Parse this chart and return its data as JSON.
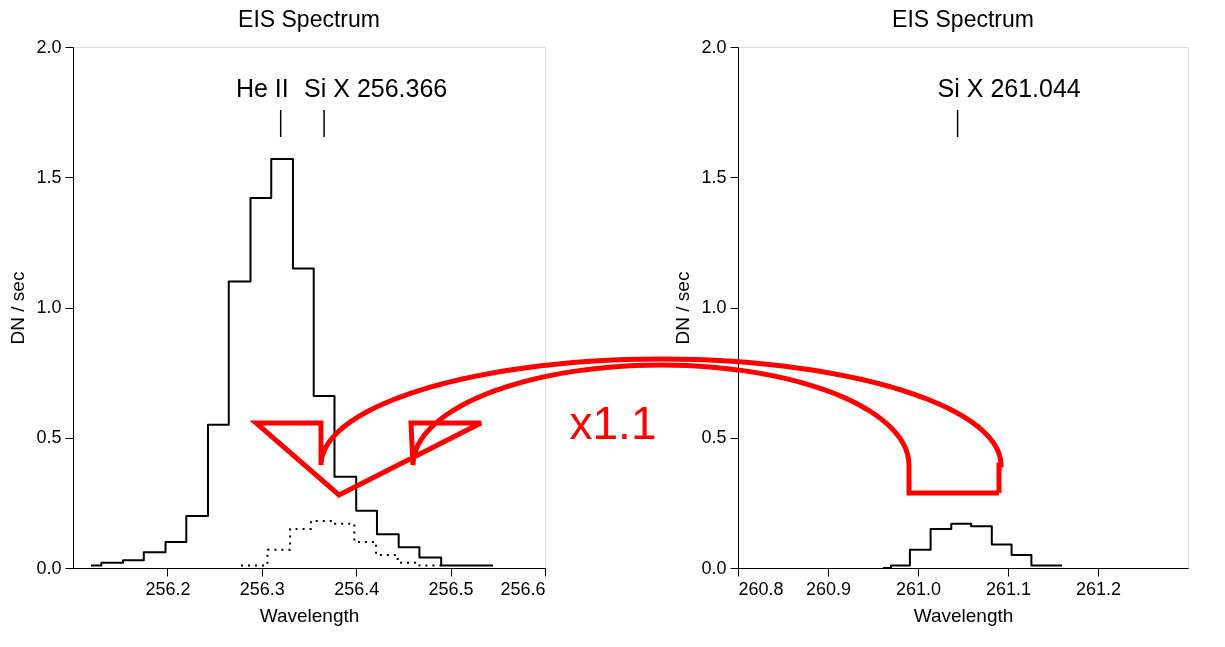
{
  "chart_data": [
    {
      "type": "step",
      "title": "EIS Spectrum",
      "xlabel": "Wavelength",
      "ylabel": "DN / sec",
      "xlim": [
        256.1,
        256.6
      ],
      "ylim": [
        0,
        2.0
      ],
      "xticks": [
        256.2,
        256.3,
        256.4,
        256.5,
        256.6
      ],
      "yticks": [
        {
          "value": 0,
          "label": "0.0"
        },
        {
          "value": 0.5,
          "label": "0.5"
        },
        {
          "value": 1.0,
          "label": "1.0"
        },
        {
          "value": 1.5,
          "label": "1.5"
        },
        {
          "value": 2.0,
          "label": "2.0"
        }
      ],
      "series": [
        {
          "color": "#000000",
          "line_style": "solid",
          "x": [
            256.119,
            256.13,
            256.153,
            256.175,
            256.198,
            256.22,
            256.243,
            256.265,
            256.288,
            256.31,
            256.333,
            256.355,
            256.377,
            256.4,
            256.422,
            256.445,
            256.467,
            256.49,
            256.512,
            256.545
          ],
          "values": [
            0.01,
            0.02,
            0.03,
            0.06,
            0.1,
            0.2,
            0.55,
            1.1,
            1.42,
            1.57,
            1.15,
            0.66,
            0.35,
            0.22,
            0.13,
            0.08,
            0.04,
            0.01,
            0.01,
            0.01
          ]
        },
        {
          "color": "#000000",
          "line_style": "dotted",
          "x": [
            256.278,
            256.306,
            256.33,
            256.352,
            256.375,
            256.398,
            256.421,
            256.444,
            256.467,
            256.49
          ],
          "values": [
            0.01,
            0.07,
            0.15,
            0.18,
            0.17,
            0.1,
            0.05,
            0.02,
            0.01,
            0.01
          ]
        }
      ],
      "ref_lines": [
        {
          "axis": "x",
          "value": 256.32,
          "label": "He II"
        },
        {
          "axis": "x",
          "value": 256.366,
          "label": "Si X 256.366"
        }
      ]
    },
    {
      "type": "step",
      "title": "EIS Spectrum",
      "xlabel": "Wavelength",
      "ylabel": "DN / sec",
      "xlim": [
        260.8,
        261.3
      ],
      "ylim": [
        0,
        2.0
      ],
      "xticks": [
        260.8,
        260.9,
        {
          "value": 261.0,
          "label": "261.0"
        },
        261.1,
        261.2
      ],
      "yticks": [
        {
          "value": 0,
          "label": "0.0"
        },
        {
          "value": 0.5,
          "label": "0.5"
        },
        {
          "value": 1.0,
          "label": "1.0"
        },
        {
          "value": 1.5,
          "label": "1.5"
        },
        {
          "value": 2.0,
          "label": "2.0"
        }
      ],
      "series": [
        {
          "color": "#000000",
          "line_style": "solid",
          "x": [
            260.961,
            260.97,
            260.991,
            261.014,
            261.037,
            261.059,
            261.082,
            261.104,
            261.126,
            261.149,
            261.16
          ],
          "values": [
            0.0,
            0.01,
            0.07,
            0.15,
            0.17,
            0.16,
            0.09,
            0.05,
            0.01,
            0.01,
            0.01
          ]
        }
      ],
      "ref_lines": [
        {
          "axis": "x",
          "value": 261.044,
          "label": "Si X 261.044"
        }
      ],
      "annotations": [
        "x1.1"
      ]
    }
  ]
}
